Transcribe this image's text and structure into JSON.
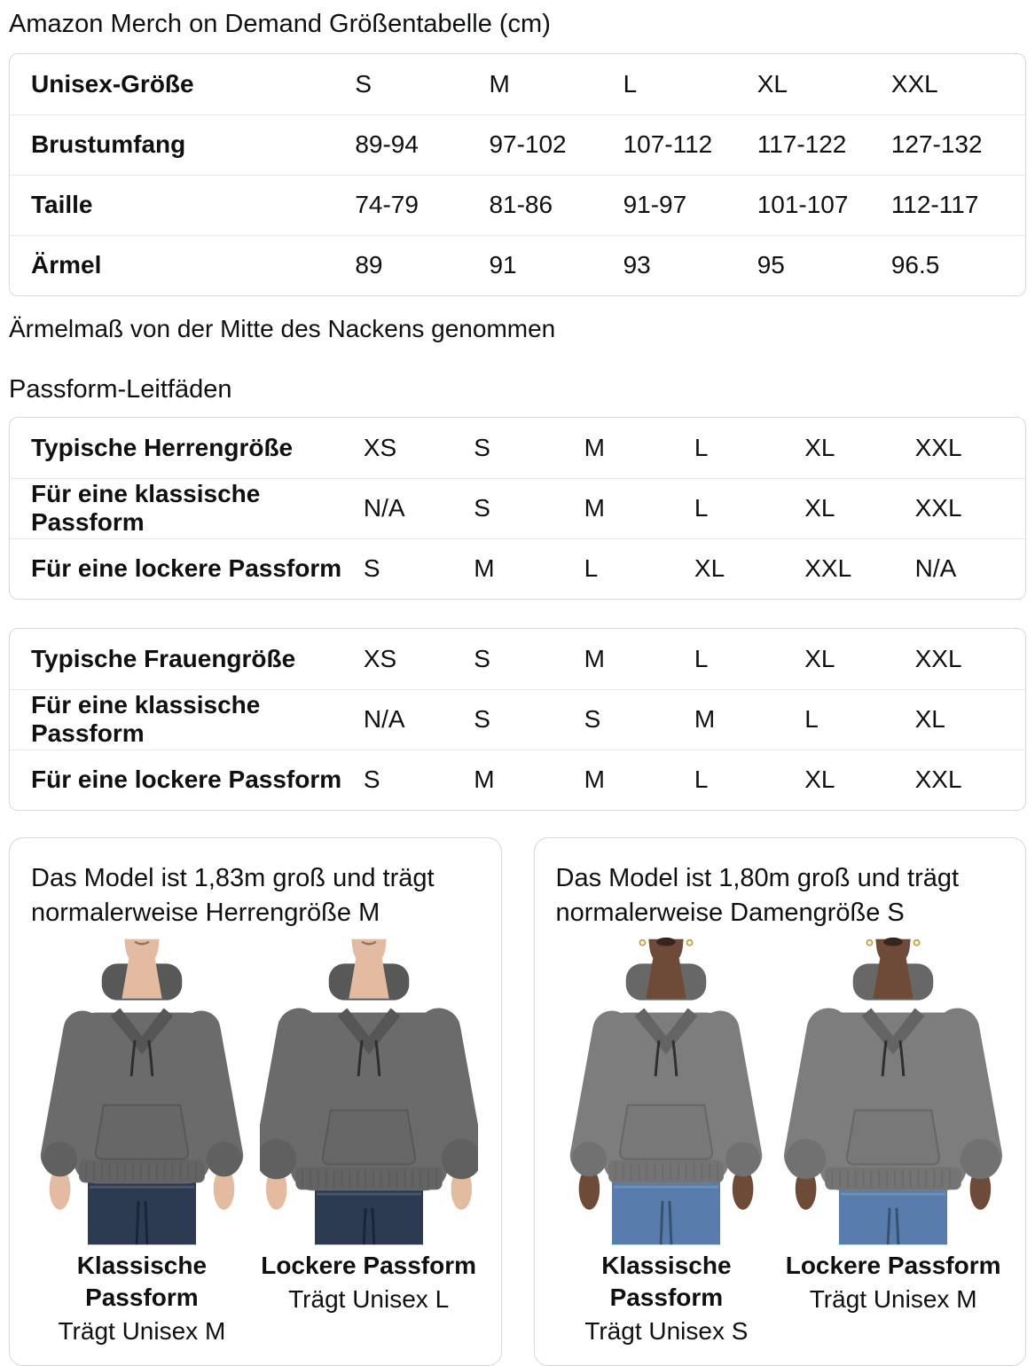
{
  "page": {
    "title": "Amazon Merch on Demand Größentabelle (cm)",
    "footnote": "Ärmelmaß von der Mitte des Nackens genommen",
    "fit_guides_heading": "Passform-Leitfäden"
  },
  "size_table": {
    "rows": [
      {
        "label": "Unisex-Größe",
        "values": [
          "S",
          "M",
          "L",
          "XL",
          "XXL"
        ]
      },
      {
        "label": "Brustumfang",
        "values": [
          "89-94",
          "97-102",
          "107-112",
          "117-122",
          "127-132"
        ]
      },
      {
        "label": "Taille",
        "values": [
          "74-79",
          "81-86",
          "91-97",
          "101-107",
          "112-117"
        ]
      },
      {
        "label": "Ärmel",
        "values": [
          "89",
          "91",
          "93",
          "95",
          "96.5"
        ]
      }
    ]
  },
  "mens_fit_table": {
    "rows": [
      {
        "label": "Typische Herrengröße",
        "values": [
          "XS",
          "S",
          "M",
          "L",
          "XL",
          "XXL"
        ]
      },
      {
        "label": "Für eine klassische Passform",
        "values": [
          "N/A",
          "S",
          "M",
          "L",
          "XL",
          "XXL"
        ]
      },
      {
        "label": "Für eine lockere Passform",
        "values": [
          "S",
          "M",
          "L",
          "XL",
          "XXL",
          "N/A"
        ]
      }
    ]
  },
  "womens_fit_table": {
    "rows": [
      {
        "label": "Typische Frauengröße",
        "values": [
          "XS",
          "S",
          "M",
          "L",
          "XL",
          "XXL"
        ]
      },
      {
        "label": "Für eine klassische Passform",
        "values": [
          "N/A",
          "S",
          "S",
          "M",
          "L",
          "XL"
        ]
      },
      {
        "label": "Für eine lockere Passform",
        "values": [
          "S",
          "M",
          "M",
          "L",
          "XL",
          "XXL"
        ]
      }
    ]
  },
  "model_cards": [
    {
      "description": "Das Model ist 1,83m groß und trägt normalerweise Herrengröße M",
      "figures": [
        {
          "fit_label": "Klassische Passform",
          "wears_label": "Trägt Unisex M"
        },
        {
          "fit_label": "Lockere Passform",
          "wears_label": "Trägt Unisex L"
        }
      ]
    },
    {
      "description": "Das Model ist 1,80m groß und trägt normalerweise Damengröße S",
      "figures": [
        {
          "fit_label": "Klassische Passform",
          "wears_label": "Trägt Unisex S"
        },
        {
          "fit_label": "Lockere Passform",
          "wears_label": "Trägt Unisex M"
        }
      ]
    }
  ],
  "colors": {
    "text": "#0F1111",
    "table_border": "#D5D9D9",
    "row_divider": "#E7E7E7",
    "hoodie_male": "#6B6B6B",
    "hoodie_female": "#7D7D7D",
    "skin_male": "#E3BBA0",
    "skin_female": "#6E4A38",
    "lips_female": "#3C241E",
    "jeans_male": "#2C3A52",
    "jeans_female": "#587DAC"
  }
}
